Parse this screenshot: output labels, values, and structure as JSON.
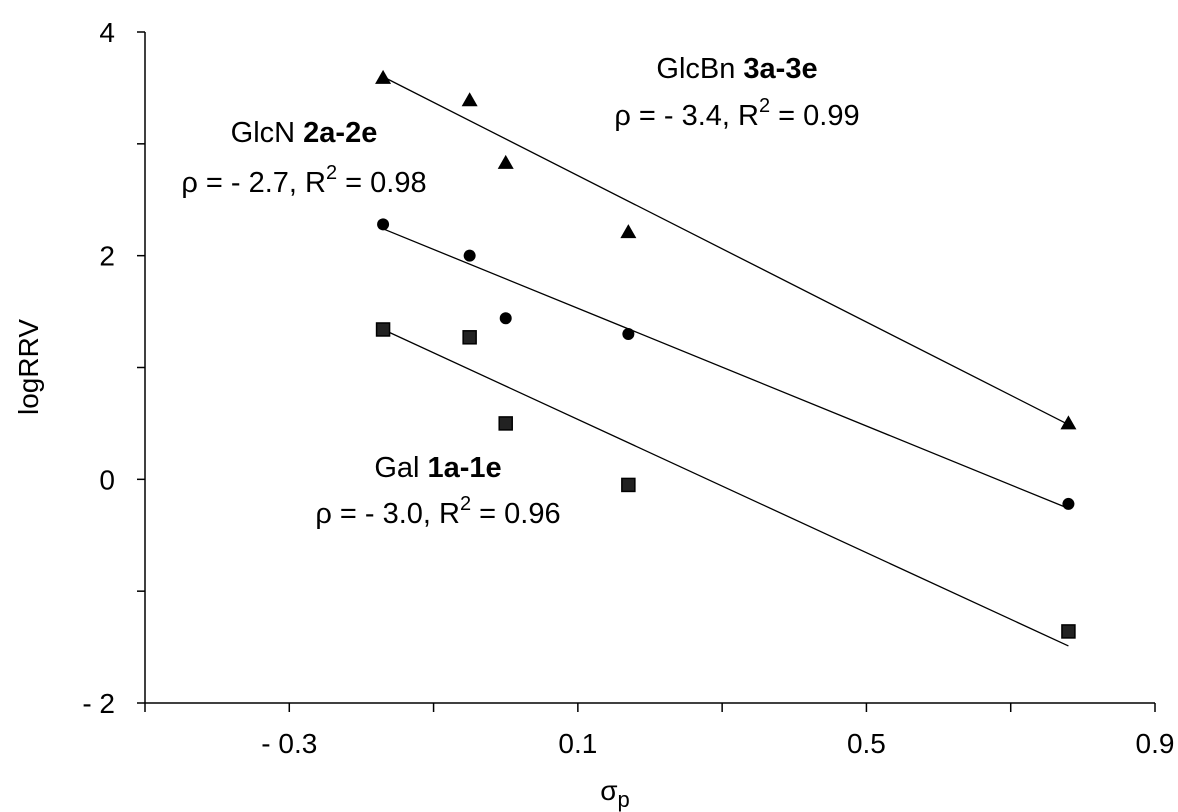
{
  "chart_data": {
    "type": "scatter",
    "title": "",
    "xlabel": "σ",
    "xlabel_subscript": "p",
    "ylabel": "logRRV",
    "xlim": [
      -0.5,
      0.9
    ],
    "ylim": [
      -2,
      4
    ],
    "x_ticks": [
      -0.5,
      -0.3,
      -0.1,
      0.1,
      0.3,
      0.5,
      0.7,
      0.9
    ],
    "x_tick_labels": [
      {
        "value": -0.3,
        "label": "- 0.3"
      },
      {
        "value": 0.1,
        "label": "0.1"
      },
      {
        "value": 0.5,
        "label": "0.5"
      },
      {
        "value": 0.9,
        "label": "0.9"
      }
    ],
    "y_ticks": [
      -2,
      -1,
      0,
      1,
      2,
      3,
      4
    ],
    "y_tick_labels": [
      {
        "value": 4,
        "label": "4"
      },
      {
        "value": 2,
        "label": "2"
      },
      {
        "value": 0,
        "label": "0"
      },
      {
        "value": -2,
        "label": "- 2"
      }
    ],
    "grid": false,
    "series": [
      {
        "id": "glcbn",
        "marker": "triangle",
        "x": [
          -0.17,
          -0.05,
          0.0,
          0.17,
          0.78
        ],
        "y": [
          3.59,
          3.39,
          2.83,
          2.21,
          0.5
        ],
        "fit": {
          "x": [
            -0.17,
            0.78
          ],
          "y": [
            3.6,
            0.49
          ]
        },
        "annotation": {
          "name": "GlcBn ",
          "compound": "3a-3e",
          "rho_text": "ρ = - 3.4, R",
          "sup": "2",
          "r2_text": " = 0.99"
        }
      },
      {
        "id": "glcn",
        "marker": "circle",
        "x": [
          -0.17,
          -0.05,
          0.0,
          0.17,
          0.78
        ],
        "y": [
          2.28,
          2.0,
          1.44,
          1.3,
          -0.22
        ],
        "fit": {
          "x": [
            -0.17,
            0.78
          ],
          "y": [
            2.24,
            -0.26
          ]
        },
        "annotation": {
          "name": "GlcN ",
          "compound": "2a-2e",
          "rho_text": "ρ = - 2.7, R",
          "sup": "2",
          "r2_text": " = 0.98"
        }
      },
      {
        "id": "gal",
        "marker": "square",
        "x": [
          -0.17,
          -0.05,
          0.0,
          0.17,
          0.78
        ],
        "y": [
          1.34,
          1.27,
          0.5,
          -0.05,
          -1.36
        ],
        "fit": {
          "x": [
            -0.17,
            0.78
          ],
          "y": [
            1.34,
            -1.49
          ]
        },
        "annotation": {
          "name": "Gal ",
          "compound": "1a-1e",
          "rho_text": "ρ = - 3.0, R",
          "sup": "2",
          "r2_text": " = 0.96"
        }
      }
    ]
  }
}
